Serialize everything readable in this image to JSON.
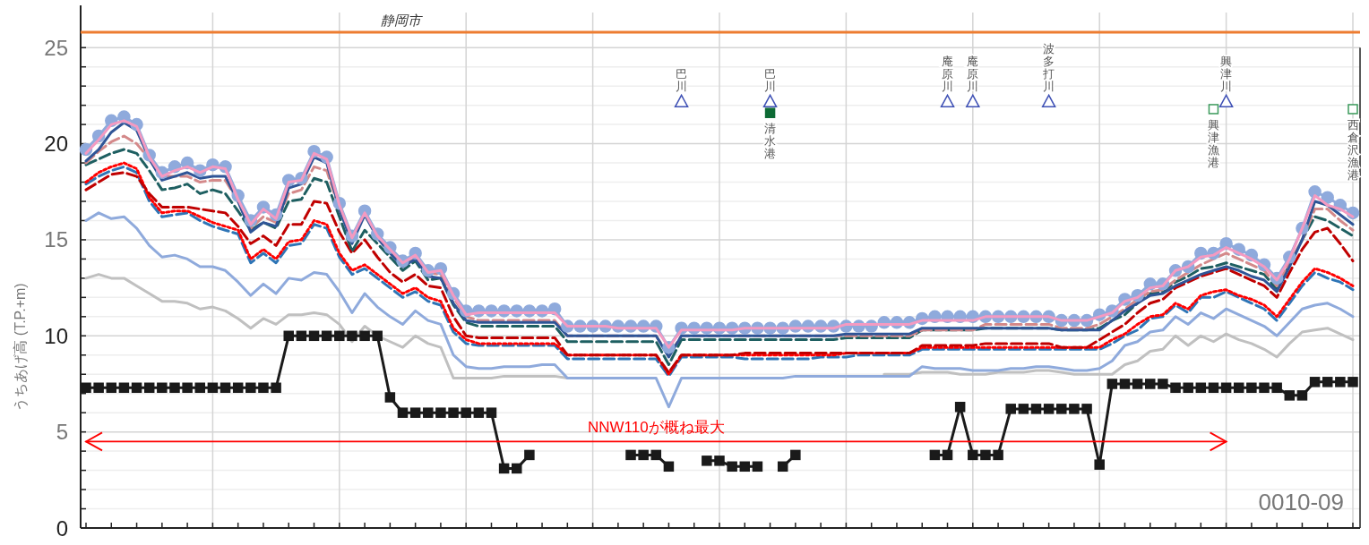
{
  "chart_data": {
    "type": "line",
    "ylabel": "うちあげ高 (T.P.+m)",
    "categories": [
      null,
      null,
      null,
      null,
      null,
      null,
      null,
      null,
      null,
      null,
      null,
      null,
      null,
      null,
      null,
      null,
      null,
      null,
      null,
      null,
      null,
      null,
      null,
      null,
      null,
      null,
      null,
      null,
      null,
      null,
      null,
      null,
      null,
      null,
      null,
      null,
      null,
      null,
      null,
      null,
      null,
      null,
      null,
      null,
      null,
      null,
      null,
      null,
      null,
      null,
      null,
      null,
      null,
      null,
      null,
      null,
      null,
      null,
      null,
      null,
      null,
      null,
      null,
      null,
      null,
      null,
      null,
      null,
      null,
      null,
      null,
      null,
      null,
      null,
      null,
      null,
      null,
      null,
      null,
      null,
      null,
      null,
      null,
      null,
      null,
      null,
      null,
      null,
      null,
      null,
      null,
      null,
      null,
      null,
      null,
      null,
      null,
      null,
      null,
      null,
      null
    ],
    "ylim": [
      0,
      27.2
    ],
    "yticks": [
      0,
      {
        "value": 1,
        "label": null
      },
      {
        "value": 2,
        "label": null
      },
      {
        "value": 3,
        "label": null
      },
      {
        "value": 4,
        "label": null
      },
      5,
      {
        "value": 6,
        "label": null
      },
      {
        "value": 7,
        "label": null
      },
      {
        "value": 8,
        "label": null
      },
      {
        "value": 9,
        "label": null
      },
      10,
      {
        "value": 11,
        "label": null
      },
      {
        "value": 12,
        "label": null
      },
      {
        "value": 13,
        "label": null
      },
      {
        "value": 14,
        "label": null
      },
      15,
      {
        "value": 16,
        "label": null
      },
      {
        "value": 17,
        "label": null
      },
      {
        "value": 18,
        "label": null
      },
      {
        "value": 19,
        "label": null
      },
      20,
      {
        "value": 21,
        "label": null
      },
      {
        "value": 22,
        "label": null
      },
      {
        "value": 23,
        "label": null
      },
      {
        "value": 24,
        "label": null
      },
      25
    ],
    "tick_labels": "y",
    "grid": true,
    "ref_lines": [
      {
        "axis": "y",
        "value": 25.8,
        "label": "静岡市",
        "color": "#ed7d31"
      }
    ],
    "series": [
      {
        "color": "#c0c0c0",
        "values": [
          13.0,
          13.2,
          13.0,
          13.0,
          12.6,
          12.2,
          11.8,
          11.8,
          11.7,
          11.4,
          11.5,
          11.3,
          10.9,
          10.4,
          10.9,
          10.6,
          11.1,
          11.1,
          11.2,
          11.1,
          10.6,
          9.7,
          10.5,
          10.0,
          9.7,
          9.4,
          10.0,
          9.6,
          9.4,
          7.8,
          7.8,
          7.8,
          7.8,
          7.9,
          7.9,
          7.9,
          7.9,
          7.9,
          7.8,
          null,
          null,
          null,
          null,
          null,
          null,
          null,
          null,
          null,
          null,
          null,
          null,
          null,
          null,
          null,
          null,
          null,
          null,
          null,
          null,
          null,
          null,
          null,
          null,
          8.0,
          8.0,
          8.0,
          8.1,
          8.1,
          8.1,
          8.0,
          8.0,
          8.0,
          8.1,
          8.1,
          8.1,
          8.2,
          8.2,
          8.1,
          8.0,
          8.0,
          8.0,
          8.0,
          8.5,
          8.7,
          9.2,
          9.3,
          10.0,
          9.5,
          10.0,
          9.7,
          10.1,
          9.8,
          9.6,
          9.3,
          8.9,
          9.6,
          10.2,
          10.3,
          10.4,
          10.1,
          9.8
        ]
      },
      {
        "color": "#8faadc",
        "values": [
          16.0,
          16.4,
          16.1,
          16.2,
          15.6,
          14.7,
          14.1,
          14.2,
          14.0,
          13.6,
          13.6,
          13.4,
          12.8,
          12.1,
          12.7,
          12.2,
          13.0,
          12.9,
          13.3,
          13.2,
          12.3,
          11.2,
          12.2,
          11.5,
          11.0,
          10.6,
          11.3,
          10.8,
          10.6,
          9.0,
          8.4,
          8.3,
          8.3,
          8.4,
          8.4,
          8.4,
          8.5,
          8.5,
          7.8,
          7.8,
          7.8,
          7.8,
          7.8,
          7.8,
          7.8,
          7.8,
          6.3,
          7.8,
          7.8,
          7.8,
          7.8,
          7.8,
          7.8,
          7.8,
          7.8,
          7.8,
          7.9,
          7.9,
          7.9,
          7.9,
          7.9,
          7.9,
          7.9,
          7.9,
          7.9,
          7.9,
          8.4,
          8.3,
          8.3,
          8.3,
          8.2,
          8.2,
          8.2,
          8.3,
          8.3,
          8.4,
          8.4,
          8.3,
          8.2,
          8.2,
          8.3,
          8.7,
          9.5,
          9.7,
          10.2,
          10.3,
          11.0,
          10.6,
          11.2,
          10.9,
          11.4,
          11.1,
          10.8,
          10.5,
          10.0,
          10.7,
          11.4,
          11.6,
          11.7,
          11.4,
          11.0
        ]
      },
      {
        "color": "#2e75b6",
        "line_style": "dashed",
        "values": [
          17.9,
          18.3,
          18.6,
          18.8,
          18.5,
          17.0,
          16.2,
          16.3,
          16.4,
          16.0,
          15.7,
          15.5,
          15.3,
          13.8,
          14.3,
          13.8,
          14.7,
          14.8,
          15.8,
          15.6,
          14.1,
          13.2,
          13.5,
          13.0,
          12.5,
          12.0,
          12.3,
          11.8,
          11.6,
          10.2,
          9.6,
          9.5,
          9.5,
          9.5,
          9.5,
          9.5,
          9.5,
          9.5,
          8.8,
          8.8,
          8.8,
          8.8,
          8.8,
          8.8,
          8.8,
          8.8,
          7.9,
          8.9,
          8.9,
          8.9,
          8.9,
          8.9,
          8.8,
          8.8,
          8.8,
          8.8,
          8.8,
          8.8,
          8.9,
          8.9,
          8.9,
          9.0,
          9.0,
          9.0,
          9.0,
          9.0,
          9.3,
          9.3,
          9.3,
          9.3,
          9.3,
          9.3,
          9.3,
          9.3,
          9.3,
          9.3,
          9.3,
          9.3,
          9.3,
          9.3,
          9.3,
          9.6,
          10.0,
          10.3,
          10.9,
          11.0,
          11.6,
          11.2,
          12.0,
          12.0,
          12.3,
          12.0,
          11.7,
          11.4,
          10.8,
          11.7,
          12.6,
          13.3,
          13.0,
          12.8,
          12.4
        ]
      },
      {
        "color": "#ff0000",
        "line_style": "dotted",
        "values": [
          18.0,
          18.5,
          18.8,
          19.0,
          18.7,
          17.2,
          16.4,
          16.5,
          16.5,
          16.2,
          15.9,
          15.7,
          15.5,
          14.0,
          14.5,
          14.0,
          14.9,
          15.0,
          16.0,
          15.8,
          14.3,
          13.4,
          13.7,
          13.2,
          12.7,
          12.2,
          12.5,
          12.0,
          11.8,
          10.4,
          9.8,
          9.6,
          9.6,
          9.6,
          9.6,
          9.6,
          9.6,
          9.6,
          9.0,
          9.0,
          9.0,
          9.0,
          9.0,
          9.0,
          9.0,
          9.0,
          8.0,
          9.0,
          9.0,
          9.0,
          9.0,
          9.0,
          9.0,
          9.0,
          9.0,
          9.0,
          9.0,
          9.0,
          9.0,
          9.0,
          9.1,
          9.1,
          9.1,
          9.1,
          9.1,
          9.1,
          9.4,
          9.4,
          9.4,
          9.4,
          9.4,
          9.4,
          9.4,
          9.4,
          9.4,
          9.4,
          9.4,
          9.4,
          9.4,
          9.4,
          9.4,
          9.8,
          10.1,
          10.6,
          11.0,
          11.1,
          11.7,
          11.4,
          12.1,
          12.3,
          12.4,
          12.1,
          11.9,
          11.6,
          11.0,
          11.9,
          12.8,
          13.5,
          13.3,
          13.0,
          12.6
        ]
      },
      {
        "color": "#c00000",
        "line_style": "dashed",
        "values": [
          17.6,
          18.0,
          18.4,
          18.5,
          18.3,
          17.4,
          16.7,
          16.7,
          16.7,
          16.6,
          16.5,
          16.4,
          15.7,
          14.8,
          15.2,
          14.7,
          15.8,
          15.8,
          17.0,
          16.9,
          15.4,
          14.3,
          15.0,
          14.1,
          13.3,
          12.8,
          13.2,
          12.6,
          12.5,
          11.0,
          10.0,
          9.9,
          9.9,
          9.9,
          9.9,
          9.9,
          9.9,
          9.9,
          9.0,
          9.0,
          9.0,
          9.0,
          9.0,
          9.0,
          9.0,
          9.0,
          8.1,
          9.0,
          9.0,
          9.0,
          9.0,
          9.0,
          9.1,
          9.1,
          9.1,
          9.1,
          9.1,
          9.1,
          9.1,
          9.1,
          9.1,
          9.1,
          9.1,
          9.1,
          9.1,
          9.1,
          9.5,
          9.5,
          9.5,
          9.5,
          9.5,
          9.6,
          9.6,
          9.6,
          9.6,
          9.6,
          9.6,
          9.4,
          9.4,
          9.4,
          9.8,
          10.2,
          10.6,
          11.2,
          11.7,
          11.9,
          12.5,
          12.8,
          13.1,
          13.3,
          13.5,
          13.2,
          12.9,
          12.6,
          12.0,
          13.3,
          14.5,
          15.4,
          15.6,
          14.8,
          13.9
        ]
      },
      {
        "color": "#1e5f61",
        "line_style": "dashed",
        "values": [
          18.9,
          19.2,
          19.5,
          19.7,
          19.5,
          18.6,
          17.6,
          17.7,
          17.9,
          17.4,
          17.6,
          17.4,
          16.5,
          15.5,
          15.9,
          15.6,
          17.0,
          17.1,
          18.2,
          18.0,
          16.2,
          14.4,
          15.5,
          14.8,
          14.1,
          13.4,
          13.9,
          12.9,
          13.0,
          11.6,
          10.7,
          10.5,
          10.5,
          10.5,
          10.5,
          10.5,
          10.5,
          10.5,
          9.7,
          9.7,
          9.7,
          9.7,
          9.7,
          9.7,
          9.7,
          9.7,
          8.5,
          9.8,
          9.8,
          9.8,
          9.8,
          9.8,
          9.8,
          9.8,
          9.8,
          9.8,
          9.8,
          9.8,
          9.8,
          9.8,
          9.9,
          9.9,
          9.9,
          9.9,
          9.9,
          9.9,
          10.3,
          10.3,
          10.3,
          10.3,
          10.3,
          10.4,
          10.4,
          10.4,
          10.4,
          10.4,
          10.4,
          10.3,
          10.3,
          10.3,
          10.4,
          10.8,
          11.1,
          11.7,
          12.2,
          12.3,
          12.8,
          13.1,
          13.5,
          13.6,
          13.8,
          13.6,
          13.4,
          13.2,
          12.4,
          13.7,
          15.0,
          16.2,
          16.0,
          15.6,
          15.2
        ]
      },
      {
        "color": "#d4898a",
        "line_style": "dashed",
        "values": [
          19.0,
          19.6,
          20.1,
          20.4,
          20.0,
          19.2,
          18.3,
          18.3,
          18.3,
          18.0,
          18.1,
          18.1,
          17.0,
          15.6,
          16.2,
          15.9,
          17.4,
          17.6,
          18.8,
          18.6,
          16.6,
          15.0,
          16.3,
          15.3,
          14.4,
          13.7,
          14.0,
          13.3,
          13.2,
          12.0,
          11.0,
          10.8,
          10.8,
          10.8,
          10.8,
          10.8,
          10.8,
          10.8,
          10.0,
          10.0,
          10.0,
          10.0,
          10.0,
          10.0,
          10.0,
          10.0,
          9.0,
          10.0,
          10.0,
          10.0,
          10.0,
          10.0,
          10.0,
          10.0,
          10.0,
          10.0,
          10.0,
          10.0,
          10.0,
          10.0,
          10.0,
          10.0,
          10.0,
          10.0,
          10.0,
          10.0,
          10.3,
          10.3,
          10.3,
          10.3,
          10.3,
          10.6,
          10.6,
          10.6,
          10.6,
          10.6,
          10.6,
          10.4,
          10.4,
          10.4,
          10.6,
          11.0,
          11.4,
          11.9,
          12.3,
          12.4,
          12.9,
          13.3,
          13.7,
          14.0,
          14.3,
          14.0,
          13.7,
          13.4,
          12.6,
          13.8,
          15.0,
          16.6,
          16.6,
          16.0,
          15.5
        ]
      },
      {
        "color": "#2f5597",
        "values": [
          19.1,
          19.7,
          20.6,
          21.1,
          20.7,
          19.2,
          18.1,
          18.3,
          18.5,
          18.2,
          18.3,
          18.3,
          17.0,
          15.4,
          15.9,
          15.7,
          17.7,
          17.9,
          19.3,
          19.0,
          16.6,
          14.8,
          16.3,
          15.1,
          14.3,
          13.6,
          14.0,
          13.1,
          13.0,
          11.7,
          10.8,
          10.7,
          10.7,
          10.7,
          10.7,
          10.7,
          10.7,
          10.7,
          10.0,
          10.0,
          10.0,
          10.0,
          10.0,
          10.0,
          10.0,
          10.0,
          8.9,
          10.0,
          10.0,
          10.0,
          10.0,
          10.0,
          10.0,
          10.0,
          10.0,
          10.0,
          10.0,
          10.0,
          10.0,
          10.0,
          10.1,
          10.1,
          10.1,
          10.1,
          10.1,
          10.1,
          10.4,
          10.4,
          10.4,
          10.4,
          10.4,
          10.4,
          10.4,
          10.4,
          10.4,
          10.4,
          10.4,
          10.3,
          10.3,
          10.3,
          10.3,
          10.8,
          11.3,
          11.7,
          12.1,
          12.2,
          12.6,
          12.9,
          13.2,
          13.4,
          13.6,
          13.4,
          13.1,
          12.9,
          12.3,
          13.6,
          15.0,
          17.0,
          16.8,
          16.3,
          15.8
        ]
      },
      {
        "color": "#8faadc",
        "marker": "circle",
        "values": [
          19.7,
          20.4,
          21.2,
          21.4,
          21.0,
          19.4,
          18.5,
          18.8,
          19.0,
          18.6,
          18.9,
          18.8,
          17.3,
          16.0,
          16.7,
          16.3,
          18.1,
          18.2,
          19.6,
          19.3,
          16.9,
          15.2,
          16.5,
          15.3,
          14.6,
          13.9,
          14.3,
          13.4,
          13.5,
          12.2,
          11.3,
          11.3,
          11.3,
          11.3,
          11.3,
          11.3,
          11.3,
          11.4,
          10.5,
          10.5,
          10.5,
          10.5,
          10.5,
          10.5,
          10.5,
          10.5,
          9.4,
          10.4,
          10.4,
          10.4,
          10.4,
          10.4,
          10.4,
          10.4,
          10.4,
          10.4,
          10.5,
          10.5,
          10.5,
          10.5,
          10.5,
          10.5,
          10.5,
          10.7,
          10.7,
          10.7,
          10.9,
          11.0,
          11.0,
          11.0,
          11.0,
          11.0,
          11.0,
          11.0,
          11.0,
          11.0,
          11.0,
          10.8,
          10.8,
          10.8,
          11.1,
          11.3,
          11.9,
          12.1,
          12.7,
          12.7,
          13.4,
          13.6,
          14.3,
          14.3,
          14.8,
          14.5,
          14.2,
          13.7,
          13.0,
          14.1,
          15.6,
          17.5,
          17.2,
          16.8,
          16.4
        ]
      },
      {
        "color": "#f49ac1",
        "values": [
          19.5,
          20.2,
          21.0,
          21.2,
          20.9,
          19.3,
          18.3,
          18.6,
          18.8,
          18.5,
          18.8,
          18.7,
          17.1,
          15.8,
          16.6,
          16.1,
          18.0,
          18.1,
          19.5,
          19.2,
          16.8,
          15.1,
          16.4,
          15.2,
          14.5,
          13.8,
          14.2,
          13.3,
          13.4,
          12.1,
          11.1,
          11.2,
          11.2,
          11.2,
          11.2,
          11.2,
          11.2,
          11.2,
          10.5,
          10.5,
          10.5,
          10.5,
          10.4,
          10.4,
          10.4,
          10.4,
          9.4,
          10.3,
          10.3,
          10.3,
          10.3,
          10.3,
          10.4,
          10.4,
          10.4,
          10.4,
          10.4,
          10.4,
          10.4,
          10.4,
          10.6,
          10.6,
          10.6,
          10.6,
          10.6,
          10.6,
          10.8,
          10.8,
          10.8,
          10.8,
          10.8,
          11.0,
          11.0,
          11.0,
          11.0,
          11.0,
          11.0,
          10.8,
          10.8,
          10.8,
          11.0,
          11.2,
          11.8,
          12.0,
          12.5,
          12.6,
          13.4,
          13.6,
          14.1,
          14.2,
          14.6,
          14.3,
          14.0,
          13.6,
          12.9,
          14.0,
          15.6,
          17.3,
          16.8,
          16.6,
          16.2
        ]
      },
      {
        "color": "#1a1a1a",
        "marker": "square",
        "values": [
          7.3,
          7.3,
          7.3,
          7.3,
          7.3,
          7.3,
          7.3,
          7.3,
          7.3,
          7.3,
          7.3,
          7.3,
          7.3,
          7.3,
          7.3,
          7.3,
          10.0,
          10.0,
          10.0,
          10.0,
          10.0,
          10.0,
          10.0,
          10.0,
          6.8,
          6.0,
          6.0,
          6.0,
          6.0,
          6.0,
          6.0,
          6.0,
          6.0,
          3.1,
          3.1,
          3.8,
          null,
          null,
          null,
          null,
          null,
          null,
          null,
          3.8,
          3.8,
          3.8,
          3.2,
          null,
          null,
          3.5,
          3.5,
          3.2,
          3.2,
          3.2,
          null,
          3.2,
          3.8,
          null,
          null,
          null,
          null,
          null,
          null,
          null,
          null,
          null,
          null,
          3.8,
          3.8,
          6.3,
          3.8,
          3.8,
          3.8,
          6.2,
          6.2,
          6.2,
          6.2,
          6.2,
          6.2,
          6.2,
          3.3,
          7.5,
          7.5,
          7.5,
          7.5,
          7.5,
          7.3,
          7.3,
          7.3,
          7.3,
          7.3,
          7.3,
          7.3,
          7.3,
          7.3,
          6.9,
          6.9,
          7.6,
          7.6,
          7.6,
          7.6
        ]
      },
      {
        "name": "NNW110が概ね最大",
        "color": "#ff0000",
        "values": [
          4.5,
          4.5,
          4.5,
          4.5,
          4.5,
          4.5,
          4.5,
          4.5,
          4.5,
          4.5,
          4.5,
          4.5,
          4.5,
          4.5,
          4.5,
          4.5,
          4.5,
          4.5,
          4.5,
          4.5,
          4.5,
          4.5,
          4.5,
          4.5,
          4.5,
          4.5,
          4.5,
          4.5,
          4.5,
          4.5,
          4.5,
          4.5,
          4.5,
          4.5,
          4.5,
          4.5,
          4.5,
          4.5,
          4.5,
          4.5,
          4.5,
          4.5,
          4.5,
          4.5,
          4.5,
          4.5,
          4.5,
          4.5,
          4.5,
          4.5,
          4.5,
          4.5,
          4.5,
          4.5,
          4.5,
          4.5,
          4.5,
          4.5,
          4.5,
          4.5,
          4.5,
          4.5,
          4.5,
          4.5,
          4.5,
          4.5,
          4.5,
          4.5,
          4.5,
          4.5,
          4.5,
          4.5,
          4.5,
          4.5,
          4.5,
          4.5,
          4.5,
          4.5,
          4.5,
          4.5,
          4.5,
          4.5,
          4.5,
          4.5,
          4.5,
          4.5,
          4.5,
          4.5,
          4.5,
          4.5,
          4.5,
          null,
          null,
          null,
          null,
          null,
          null,
          null,
          null,
          null,
          null
        ]
      },
      {
        "type": "scatter",
        "color": "#3f51b5",
        "marker": "triangle",
        "values": [
          null,
          null,
          null,
          null,
          null,
          null,
          null,
          null,
          null,
          null,
          null,
          null,
          null,
          null,
          null,
          null,
          null,
          null,
          null,
          null,
          null,
          null,
          null,
          null,
          null,
          null,
          null,
          null,
          null,
          null,
          null,
          null,
          null,
          null,
          null,
          null,
          null,
          null,
          null,
          null,
          null,
          null,
          null,
          null,
          null,
          null,
          null,
          22.2,
          null,
          null,
          null,
          null,
          null,
          null,
          22.2,
          null,
          null,
          null,
          null,
          null,
          null,
          null,
          null,
          null,
          null,
          null,
          null,
          null,
          22.2,
          null,
          22.2,
          null,
          null,
          null,
          null,
          null,
          22.2,
          null,
          null,
          null,
          null,
          null,
          null,
          null,
          null,
          null,
          null,
          null,
          null,
          null,
          22.2,
          null,
          null,
          null,
          null,
          null,
          null,
          null,
          null,
          null,
          null
        ],
        "value_labels": [
          null,
          null,
          null,
          null,
          null,
          null,
          null,
          null,
          null,
          null,
          null,
          null,
          null,
          null,
          null,
          null,
          null,
          null,
          null,
          null,
          null,
          null,
          null,
          null,
          null,
          null,
          null,
          null,
          null,
          null,
          null,
          null,
          null,
          null,
          null,
          null,
          null,
          null,
          null,
          null,
          null,
          null,
          null,
          null,
          null,
          null,
          null,
          "巴川",
          null,
          null,
          null,
          null,
          null,
          null,
          "巴川",
          null,
          null,
          null,
          null,
          null,
          null,
          null,
          null,
          null,
          null,
          null,
          null,
          null,
          "庵原川",
          null,
          "庵原川",
          null,
          null,
          null,
          null,
          null,
          "波多打川",
          null,
          null,
          null,
          null,
          null,
          null,
          null,
          null,
          null,
          null,
          null,
          null,
          null,
          "興津川",
          null,
          null,
          null,
          null,
          null,
          null,
          null,
          null,
          null,
          null
        ]
      },
      {
        "type": "scatter",
        "color": "#0e6b35",
        "marker": "square",
        "values": [
          null,
          null,
          null,
          null,
          null,
          null,
          null,
          null,
          null,
          null,
          null,
          null,
          null,
          null,
          null,
          null,
          null,
          null,
          null,
          null,
          null,
          null,
          null,
          null,
          null,
          null,
          null,
          null,
          null,
          null,
          null,
          null,
          null,
          null,
          null,
          null,
          null,
          null,
          null,
          null,
          null,
          null,
          null,
          null,
          null,
          null,
          null,
          null,
          null,
          null,
          null,
          null,
          null,
          null,
          21.6,
          null,
          null,
          null,
          null,
          null,
          null,
          null,
          null,
          null,
          null,
          null,
          null,
          null,
          null,
          null,
          null,
          null,
          null,
          null,
          null,
          null,
          null,
          null,
          null,
          null,
          null,
          null,
          null,
          null,
          null,
          null,
          null,
          null,
          null,
          null,
          null,
          null,
          null,
          null,
          null,
          null,
          null,
          null,
          null,
          null,
          null
        ],
        "value_labels": [
          null,
          null,
          null,
          null,
          null,
          null,
          null,
          null,
          null,
          null,
          null,
          null,
          null,
          null,
          null,
          null,
          null,
          null,
          null,
          null,
          null,
          null,
          null,
          null,
          null,
          null,
          null,
          null,
          null,
          null,
          null,
          null,
          null,
          null,
          null,
          null,
          null,
          null,
          null,
          null,
          null,
          null,
          null,
          null,
          null,
          null,
          null,
          null,
          null,
          null,
          null,
          null,
          null,
          null,
          "清水港",
          null,
          null,
          null,
          null,
          null,
          null,
          null,
          null,
          null,
          null,
          null,
          null,
          null,
          null,
          null,
          null,
          null,
          null,
          null,
          null,
          null,
          null,
          null,
          null,
          null,
          null,
          null,
          null,
          null,
          null,
          null,
          null,
          null,
          null,
          null,
          null,
          null,
          null,
          null,
          null,
          null,
          null,
          null,
          null,
          null,
          null
        ]
      },
      {
        "type": "scatter",
        "color": "#3c9a5c",
        "marker": "square",
        "values": [
          null,
          null,
          null,
          null,
          null,
          null,
          null,
          null,
          null,
          null,
          null,
          null,
          null,
          null,
          null,
          null,
          null,
          null,
          null,
          null,
          null,
          null,
          null,
          null,
          null,
          null,
          null,
          null,
          null,
          null,
          null,
          null,
          null,
          null,
          null,
          null,
          null,
          null,
          null,
          null,
          null,
          null,
          null,
          null,
          null,
          null,
          null,
          null,
          null,
          null,
          null,
          null,
          null,
          null,
          null,
          null,
          null,
          null,
          null,
          null,
          null,
          null,
          null,
          null,
          null,
          null,
          null,
          null,
          null,
          null,
          null,
          null,
          null,
          null,
          null,
          null,
          null,
          null,
          null,
          null,
          null,
          null,
          null,
          null,
          null,
          null,
          null,
          null,
          null,
          21.8,
          null,
          null,
          null,
          null,
          null,
          null,
          null,
          null,
          null,
          null,
          21.8
        ],
        "value_labels": [
          null,
          null,
          null,
          null,
          null,
          null,
          null,
          null,
          null,
          null,
          null,
          null,
          null,
          null,
          null,
          null,
          null,
          null,
          null,
          null,
          null,
          null,
          null,
          null,
          null,
          null,
          null,
          null,
          null,
          null,
          null,
          null,
          null,
          null,
          null,
          null,
          null,
          null,
          null,
          null,
          null,
          null,
          null,
          null,
          null,
          null,
          null,
          null,
          null,
          null,
          null,
          null,
          null,
          null,
          null,
          null,
          null,
          null,
          null,
          null,
          null,
          null,
          null,
          null,
          null,
          null,
          null,
          null,
          null,
          null,
          null,
          null,
          null,
          null,
          null,
          null,
          null,
          null,
          null,
          null,
          null,
          null,
          null,
          null,
          null,
          null,
          null,
          null,
          null,
          "興津漁港",
          null,
          null,
          null,
          null,
          null,
          null,
          null,
          null,
          null,
          null,
          "西倉沢漁港"
        ]
      }
    ],
    "annotations": [
      "0010-09"
    ]
  }
}
